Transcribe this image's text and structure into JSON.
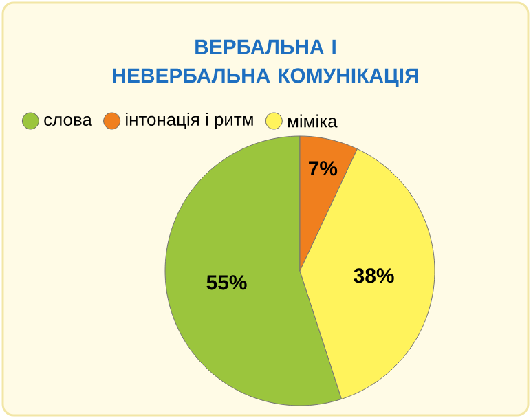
{
  "chart_data": {
    "type": "pie",
    "title": "ВЕРБАЛЬНА І НЕВЕРБАЛЬНА КОМУНІКАЦІЯ",
    "categories": [
      "слова",
      "інтонація і ритм",
      "міміка"
    ],
    "values": [
      55,
      7,
      38
    ],
    "colors": [
      "#9bc53d",
      "#f07f1e",
      "#fff35c"
    ],
    "value_labels": [
      "55%",
      "7%",
      "38%"
    ],
    "legend": "top"
  }
}
